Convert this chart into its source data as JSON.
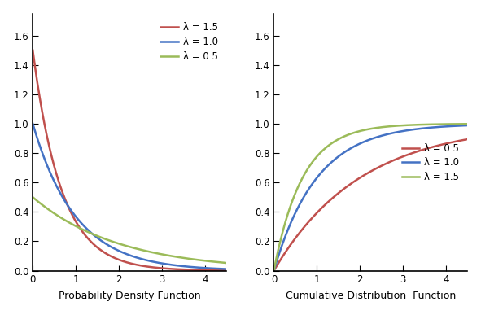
{
  "lambdas_pdf": [
    1.5,
    1.0,
    0.5
  ],
  "pdf_labels": [
    "λ = 1.5",
    "λ = 1.0",
    "λ = 0.5"
  ],
  "pdf_colors": [
    "#c0504d",
    "#4472c4",
    "#9bbb59"
  ],
  "lambdas_cdf": [
    0.5,
    1.0,
    1.5
  ],
  "cdf_labels": [
    "λ = 0.5",
    "λ = 1.0",
    "λ = 1.5"
  ],
  "cdf_colors": [
    "#c0504d",
    "#4472c4",
    "#9bbb59"
  ],
  "xlim": [
    0,
    4.5
  ],
  "ylim_pdf": [
    0,
    1.75
  ],
  "ylim_cdf": [
    0,
    1.75
  ],
  "yticks": [
    0.0,
    0.2,
    0.4,
    0.6,
    0.8,
    1.0,
    1.2,
    1.4,
    1.6
  ],
  "xticks": [
    0,
    1,
    2,
    3,
    4
  ],
  "xlabel_pdf": "Probability Density Function",
  "xlabel_cdf": "Cumulative Distribution  Function",
  "linewidth": 1.8,
  "figsize": [
    5.91,
    3.87
  ],
  "dpi": 100
}
